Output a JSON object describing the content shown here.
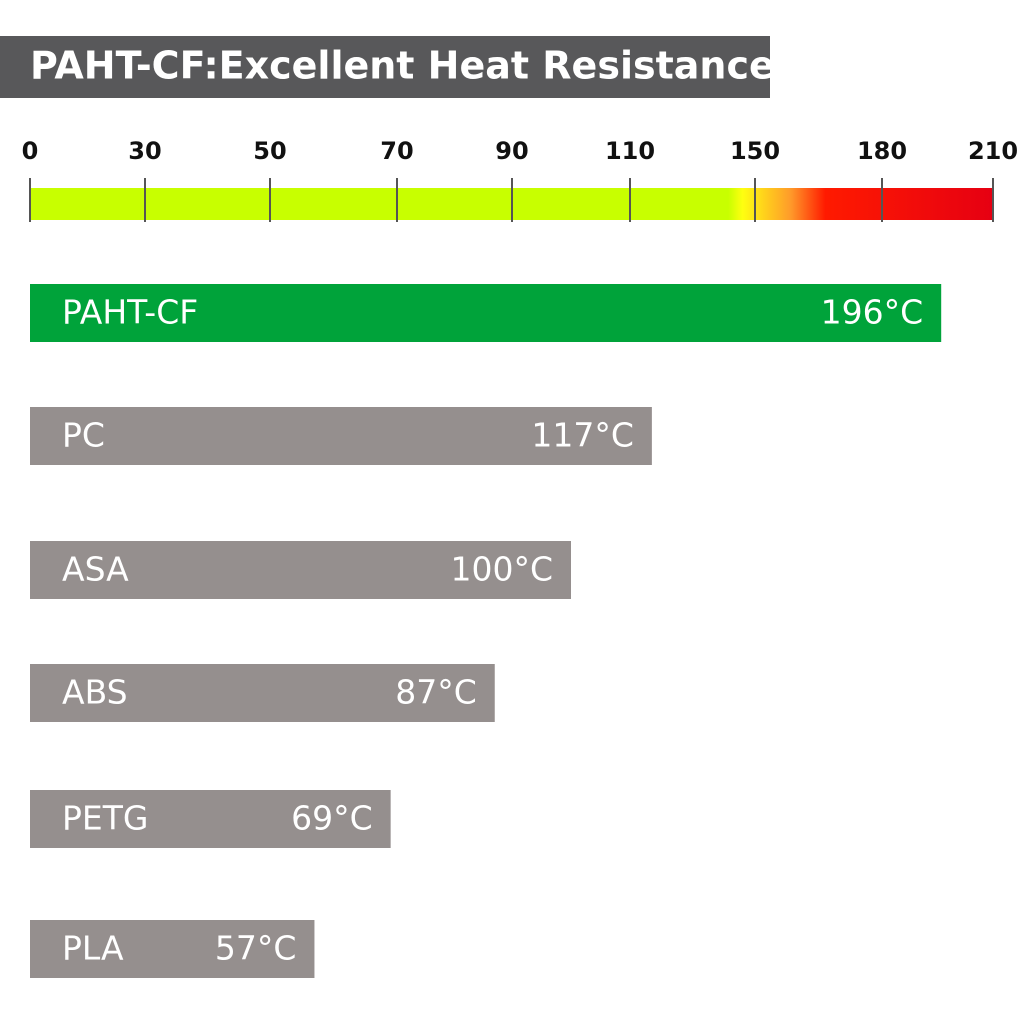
{
  "chart_data": {
    "type": "bar",
    "title": "PAHT-CF:Excellent Heat Resistance",
    "categories": [
      "PAHT-CF",
      "PC",
      "ASA",
      "ABS",
      "PETG",
      "PLA"
    ],
    "values": [
      196,
      117,
      100,
      87,
      69,
      57
    ],
    "value_labels": [
      "196°C",
      "117°C",
      "100°C",
      "87°C",
      "69°C",
      "57°C"
    ],
    "colors": [
      "#00a33a",
      "#958f8e",
      "#958f8e",
      "#958f8e",
      "#958f8e",
      "#958f8e"
    ],
    "xlim": [
      0,
      210
    ],
    "xticks": [
      0,
      30,
      50,
      70,
      90,
      110,
      150,
      180,
      210
    ]
  }
}
